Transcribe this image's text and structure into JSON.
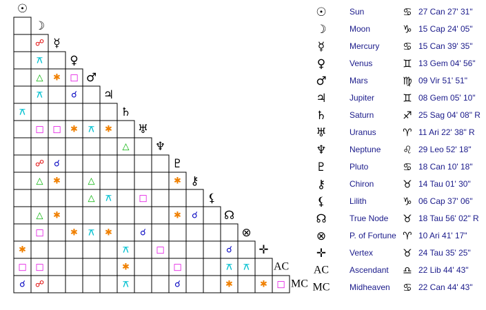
{
  "points": [
    {
      "glyph": "☉",
      "name": "Sun",
      "sign": "♋",
      "position": "27 Can 27' 31\""
    },
    {
      "glyph": "☽",
      "name": "Moon",
      "sign": "♑",
      "position": "15 Cap 24' 05\""
    },
    {
      "glyph": "☿",
      "name": "Mercury",
      "sign": "♋",
      "position": "15 Can 39' 35\""
    },
    {
      "glyph": "♀",
      "name": "Venus",
      "sign": "♊",
      "position": "13 Gem 04' 56\""
    },
    {
      "glyph": "♂",
      "name": "Mars",
      "sign": "♍",
      "position": "09 Vir 51' 51\""
    },
    {
      "glyph": "♃",
      "name": "Jupiter",
      "sign": "♊",
      "position": "08 Gem 05' 10\""
    },
    {
      "glyph": "♄",
      "name": "Saturn",
      "sign": "♐",
      "position": "25 Sag 04' 08\" R"
    },
    {
      "glyph": "♅",
      "name": "Uranus",
      "sign": "♈",
      "position": "11 Ari 22' 38\" R"
    },
    {
      "glyph": "♆",
      "name": "Neptune",
      "sign": "♌",
      "position": "29 Leo 52' 18\""
    },
    {
      "glyph": "♇",
      "name": "Pluto",
      "sign": "♋",
      "position": "18 Can 10' 18\""
    },
    {
      "glyph": "⚷",
      "name": "Chiron",
      "sign": "♉",
      "position": "14 Tau 01' 30\""
    },
    {
      "glyph": "⚸",
      "name": "Lilith",
      "sign": "♑",
      "position": "06 Cap 37' 06\""
    },
    {
      "glyph": "☊",
      "name": "True Node",
      "sign": "♉",
      "position": "18 Tau 56' 02\" R"
    },
    {
      "glyph": "⊗",
      "name": "P. of Fortune",
      "sign": "♈",
      "position": "10 Ari 41' 17\""
    },
    {
      "glyph": "✛",
      "name": "Vertex",
      "sign": "♉",
      "position": "24 Tau 35' 25\""
    },
    {
      "glyph": "AC",
      "name": "Ascendant",
      "sign": "♎",
      "position": "22 Lib 44' 43\""
    },
    {
      "glyph": "MC",
      "name": "Midheaven",
      "sign": "♋",
      "position": "22 Can 44' 43\""
    }
  ],
  "aspects": [
    {
      "planets": [
        2,
        1
      ],
      "symbol": "☍",
      "color": "#e00000"
    },
    {
      "planets": [
        3,
        1
      ],
      "symbol": "⚻",
      "color": "#00c0d0"
    },
    {
      "planets": [
        4,
        1
      ],
      "symbol": "△",
      "color": "#00b000"
    },
    {
      "planets": [
        4,
        2
      ],
      "symbol": "✱",
      "color": "#f08000"
    },
    {
      "planets": [
        4,
        3
      ],
      "symbol": "□",
      "color": "#e000e0"
    },
    {
      "planets": [
        5,
        1
      ],
      "symbol": "⚻",
      "color": "#00c0d0"
    },
    {
      "planets": [
        5,
        3
      ],
      "symbol": "☌",
      "color": "#0000c0"
    },
    {
      "planets": [
        6,
        0
      ],
      "symbol": "⚻",
      "color": "#00c0d0"
    },
    {
      "planets": [
        7,
        1
      ],
      "symbol": "□",
      "color": "#e000e0"
    },
    {
      "planets": [
        7,
        2
      ],
      "symbol": "□",
      "color": "#e000e0"
    },
    {
      "planets": [
        7,
        3
      ],
      "symbol": "✱",
      "color": "#f08000"
    },
    {
      "planets": [
        7,
        4
      ],
      "symbol": "⚻",
      "color": "#00c0d0"
    },
    {
      "planets": [
        7,
        5
      ],
      "symbol": "✱",
      "color": "#f08000"
    },
    {
      "planets": [
        8,
        6
      ],
      "symbol": "△",
      "color": "#00b000"
    },
    {
      "planets": [
        9,
        1
      ],
      "symbol": "☍",
      "color": "#e00000"
    },
    {
      "planets": [
        9,
        2
      ],
      "symbol": "☌",
      "color": "#0000c0"
    },
    {
      "planets": [
        10,
        1
      ],
      "symbol": "△",
      "color": "#00b000"
    },
    {
      "planets": [
        10,
        2
      ],
      "symbol": "✱",
      "color": "#f08000"
    },
    {
      "planets": [
        10,
        4
      ],
      "symbol": "△",
      "color": "#00b000"
    },
    {
      "planets": [
        10,
        9
      ],
      "symbol": "✱",
      "color": "#f08000"
    },
    {
      "planets": [
        11,
        4
      ],
      "symbol": "△",
      "color": "#00b000"
    },
    {
      "planets": [
        11,
        5
      ],
      "symbol": "⚻",
      "color": "#00c0d0"
    },
    {
      "planets": [
        11,
        7
      ],
      "symbol": "□",
      "color": "#e000e0"
    },
    {
      "planets": [
        12,
        1
      ],
      "symbol": "△",
      "color": "#00b000"
    },
    {
      "planets": [
        12,
        2
      ],
      "symbol": "✱",
      "color": "#f08000"
    },
    {
      "planets": [
        12,
        9
      ],
      "symbol": "✱",
      "color": "#f08000"
    },
    {
      "planets": [
        12,
        10
      ],
      "symbol": "☌",
      "color": "#0000c0"
    },
    {
      "planets": [
        13,
        1
      ],
      "symbol": "□",
      "color": "#e000e0"
    },
    {
      "planets": [
        13,
        3
      ],
      "symbol": "✱",
      "color": "#f08000"
    },
    {
      "planets": [
        13,
        4
      ],
      "symbol": "⚻",
      "color": "#00c0d0"
    },
    {
      "planets": [
        13,
        5
      ],
      "symbol": "✱",
      "color": "#f08000"
    },
    {
      "planets": [
        13,
        7
      ],
      "symbol": "☌",
      "color": "#0000c0"
    },
    {
      "planets": [
        14,
        0
      ],
      "symbol": "✱",
      "color": "#f08000"
    },
    {
      "planets": [
        14,
        6
      ],
      "symbol": "⚻",
      "color": "#00c0d0"
    },
    {
      "planets": [
        14,
        8
      ],
      "symbol": "□",
      "color": "#e000e0"
    },
    {
      "planets": [
        14,
        12
      ],
      "symbol": "☌",
      "color": "#0000c0"
    },
    {
      "planets": [
        15,
        0
      ],
      "symbol": "□",
      "color": "#e000e0"
    },
    {
      "planets": [
        15,
        1
      ],
      "symbol": "□",
      "color": "#e000e0"
    },
    {
      "planets": [
        15,
        6
      ],
      "symbol": "✱",
      "color": "#f08000"
    },
    {
      "planets": [
        15,
        9
      ],
      "symbol": "□",
      "color": "#e000e0"
    },
    {
      "planets": [
        15,
        12
      ],
      "symbol": "⚻",
      "color": "#00c0d0"
    },
    {
      "planets": [
        15,
        13
      ],
      "symbol": "⚻",
      "color": "#00c0d0"
    },
    {
      "planets": [
        16,
        0
      ],
      "symbol": "☌",
      "color": "#0000c0"
    },
    {
      "planets": [
        16,
        1
      ],
      "symbol": "☍",
      "color": "#e00000"
    },
    {
      "planets": [
        16,
        6
      ],
      "symbol": "⚻",
      "color": "#00c0d0"
    },
    {
      "planets": [
        16,
        9
      ],
      "symbol": "☌",
      "color": "#0000c0"
    },
    {
      "planets": [
        16,
        12
      ],
      "symbol": "✱",
      "color": "#f08000"
    },
    {
      "planets": [
        16,
        14
      ],
      "symbol": "✱",
      "color": "#f08000"
    },
    {
      "planets": [
        16,
        15
      ],
      "symbol": "□",
      "color": "#e000e0"
    }
  ]
}
